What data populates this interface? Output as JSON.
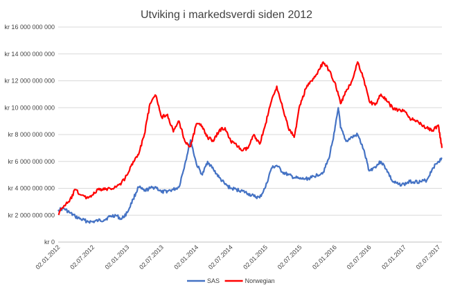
{
  "chart_data": {
    "type": "line",
    "title": "Utviking  i markedsverdi  siden 2012",
    "xlabel": "",
    "ylabel": "",
    "ylim": [
      0,
      16000000000
    ],
    "grid": true,
    "legend_position": "bottom",
    "y_ticks": [
      0,
      2000000000,
      4000000000,
      6000000000,
      8000000000,
      10000000000,
      12000000000,
      14000000000,
      16000000000
    ],
    "y_tick_labels": [
      "kr 0",
      "kr 2 000 000 000",
      "kr 4 000 000 000",
      "kr 6 000 000 000",
      "kr 8 000 000 000",
      "kr 10 000 000 000",
      "kr 12 000 000 000",
      "kr 14 000 000 000",
      "kr 16 000 000 000"
    ],
    "x_ticks": [
      "2012-01-02",
      "2012-07-02",
      "2013-01-02",
      "2013-07-02",
      "2014-01-02",
      "2014-07-02",
      "2015-01-02",
      "2015-07-02",
      "2016-01-02",
      "2016-07-02",
      "2017-01-02",
      "2017-07-02"
    ],
    "x_tick_labels": [
      "02.01.2012",
      "02.07.2012",
      "02.01.2013",
      "02.07.2013",
      "02.01.2014",
      "02.07.2014",
      "02.01.2015",
      "02.07.2015",
      "02.01.2016",
      "02.07.2016",
      "02.01.2017",
      "02.07.2017"
    ],
    "series": [
      {
        "name": "SAS",
        "color": "#4472c4",
        "points": [
          [
            "2012-01-02",
            2400000000
          ],
          [
            "2012-02-01",
            2500000000
          ],
          [
            "2012-03-01",
            2200000000
          ],
          [
            "2012-04-01",
            1900000000
          ],
          [
            "2012-05-01",
            1700000000
          ],
          [
            "2012-06-01",
            1550000000
          ],
          [
            "2012-07-01",
            1500000000
          ],
          [
            "2012-08-01",
            1600000000
          ],
          [
            "2012-09-01",
            1650000000
          ],
          [
            "2012-10-01",
            1900000000
          ],
          [
            "2012-11-01",
            2000000000
          ],
          [
            "2012-12-01",
            1700000000
          ],
          [
            "2013-01-01",
            2200000000
          ],
          [
            "2013-02-01",
            3200000000
          ],
          [
            "2013-03-01",
            4100000000
          ],
          [
            "2013-04-01",
            3800000000
          ],
          [
            "2013-05-01",
            4000000000
          ],
          [
            "2013-06-01",
            4100000000
          ],
          [
            "2013-07-01",
            3700000000
          ],
          [
            "2013-08-01",
            3800000000
          ],
          [
            "2013-09-01",
            3900000000
          ],
          [
            "2013-10-01",
            4100000000
          ],
          [
            "2013-11-01",
            5800000000
          ],
          [
            "2013-12-01",
            7600000000
          ],
          [
            "2014-01-01",
            5800000000
          ],
          [
            "2014-02-01",
            5000000000
          ],
          [
            "2014-03-01",
            6000000000
          ],
          [
            "2014-04-01",
            5400000000
          ],
          [
            "2014-05-01",
            4800000000
          ],
          [
            "2014-06-01",
            4300000000
          ],
          [
            "2014-07-01",
            4000000000
          ],
          [
            "2014-08-01",
            3900000000
          ],
          [
            "2014-09-01",
            3800000000
          ],
          [
            "2014-10-01",
            3600000000
          ],
          [
            "2014-11-01",
            3400000000
          ],
          [
            "2014-12-01",
            3300000000
          ],
          [
            "2015-01-01",
            4100000000
          ],
          [
            "2015-02-01",
            5500000000
          ],
          [
            "2015-03-01",
            5700000000
          ],
          [
            "2015-04-01",
            5200000000
          ],
          [
            "2015-05-01",
            5000000000
          ],
          [
            "2015-06-01",
            4800000000
          ],
          [
            "2015-07-01",
            4700000000
          ],
          [
            "2015-08-01",
            4700000000
          ],
          [
            "2015-09-01",
            4800000000
          ],
          [
            "2015-10-01",
            5000000000
          ],
          [
            "2015-11-01",
            5200000000
          ],
          [
            "2015-12-01",
            6200000000
          ],
          [
            "2016-01-01",
            8300000000
          ],
          [
            "2016-01-20",
            10000000000
          ],
          [
            "2016-02-01",
            8500000000
          ],
          [
            "2016-03-01",
            7500000000
          ],
          [
            "2016-04-01",
            7800000000
          ],
          [
            "2016-05-01",
            8000000000
          ],
          [
            "2016-06-01",
            6900000000
          ],
          [
            "2016-07-01",
            5300000000
          ],
          [
            "2016-08-01",
            5600000000
          ],
          [
            "2016-09-01",
            6000000000
          ],
          [
            "2016-10-01",
            5400000000
          ],
          [
            "2016-11-01",
            4500000000
          ],
          [
            "2016-12-01",
            4300000000
          ],
          [
            "2017-01-01",
            4300000000
          ],
          [
            "2017-02-01",
            4500000000
          ],
          [
            "2017-03-01",
            4500000000
          ],
          [
            "2017-04-01",
            4500000000
          ],
          [
            "2017-05-01",
            4600000000
          ],
          [
            "2017-06-01",
            5500000000
          ],
          [
            "2017-07-01",
            6000000000
          ],
          [
            "2017-07-20",
            6200000000
          ]
        ]
      },
      {
        "name": "Norwegian",
        "color": "#ff0000",
        "points": [
          [
            "2012-01-02",
            2100000000
          ],
          [
            "2012-02-01",
            2700000000
          ],
          [
            "2012-03-01",
            3000000000
          ],
          [
            "2012-04-01",
            3900000000
          ],
          [
            "2012-05-01",
            3500000000
          ],
          [
            "2012-06-01",
            3300000000
          ],
          [
            "2012-07-01",
            3500000000
          ],
          [
            "2012-08-01",
            3900000000
          ],
          [
            "2012-09-01",
            3900000000
          ],
          [
            "2012-10-01",
            4000000000
          ],
          [
            "2012-11-01",
            4100000000
          ],
          [
            "2012-12-01",
            4400000000
          ],
          [
            "2013-01-01",
            5000000000
          ],
          [
            "2013-02-01",
            6000000000
          ],
          [
            "2013-03-01",
            6500000000
          ],
          [
            "2013-04-01",
            8000000000
          ],
          [
            "2013-05-01",
            10300000000
          ],
          [
            "2013-06-01",
            10900000000
          ],
          [
            "2013-07-01",
            9300000000
          ],
          [
            "2013-08-01",
            9500000000
          ],
          [
            "2013-09-01",
            8200000000
          ],
          [
            "2013-10-01",
            9000000000
          ],
          [
            "2013-11-01",
            7500000000
          ],
          [
            "2013-12-01",
            7100000000
          ],
          [
            "2014-01-01",
            8800000000
          ],
          [
            "2014-02-01",
            8600000000
          ],
          [
            "2014-03-01",
            7800000000
          ],
          [
            "2014-04-01",
            7500000000
          ],
          [
            "2014-05-01",
            8300000000
          ],
          [
            "2014-06-01",
            8500000000
          ],
          [
            "2014-07-01",
            7500000000
          ],
          [
            "2014-08-01",
            7200000000
          ],
          [
            "2014-09-01",
            6800000000
          ],
          [
            "2014-10-01",
            7000000000
          ],
          [
            "2014-11-01",
            8000000000
          ],
          [
            "2014-12-01",
            7300000000
          ],
          [
            "2015-01-01",
            8800000000
          ],
          [
            "2015-02-01",
            10500000000
          ],
          [
            "2015-03-01",
            11600000000
          ],
          [
            "2015-04-01",
            10000000000
          ],
          [
            "2015-05-01",
            8500000000
          ],
          [
            "2015-06-01",
            7800000000
          ],
          [
            "2015-07-01",
            10200000000
          ],
          [
            "2015-08-01",
            11400000000
          ],
          [
            "2015-09-01",
            12000000000
          ],
          [
            "2015-10-01",
            12500000000
          ],
          [
            "2015-11-01",
            13400000000
          ],
          [
            "2015-12-01",
            12800000000
          ],
          [
            "2016-01-01",
            11900000000
          ],
          [
            "2016-02-01",
            10300000000
          ],
          [
            "2016-03-01",
            11200000000
          ],
          [
            "2016-04-01",
            12000000000
          ],
          [
            "2016-05-01",
            13400000000
          ],
          [
            "2016-06-01",
            12200000000
          ],
          [
            "2016-07-01",
            10500000000
          ],
          [
            "2016-08-01",
            10200000000
          ],
          [
            "2016-09-01",
            11000000000
          ],
          [
            "2016-10-01",
            10500000000
          ],
          [
            "2016-11-01",
            10000000000
          ],
          [
            "2016-12-01",
            9800000000
          ],
          [
            "2017-01-01",
            9800000000
          ],
          [
            "2017-02-01",
            9200000000
          ],
          [
            "2017-03-01",
            9000000000
          ],
          [
            "2017-04-01",
            8800000000
          ],
          [
            "2017-05-01",
            8500000000
          ],
          [
            "2017-06-01",
            8300000000
          ],
          [
            "2017-07-01",
            8700000000
          ],
          [
            "2017-07-20",
            7000000000
          ]
        ]
      }
    ]
  }
}
